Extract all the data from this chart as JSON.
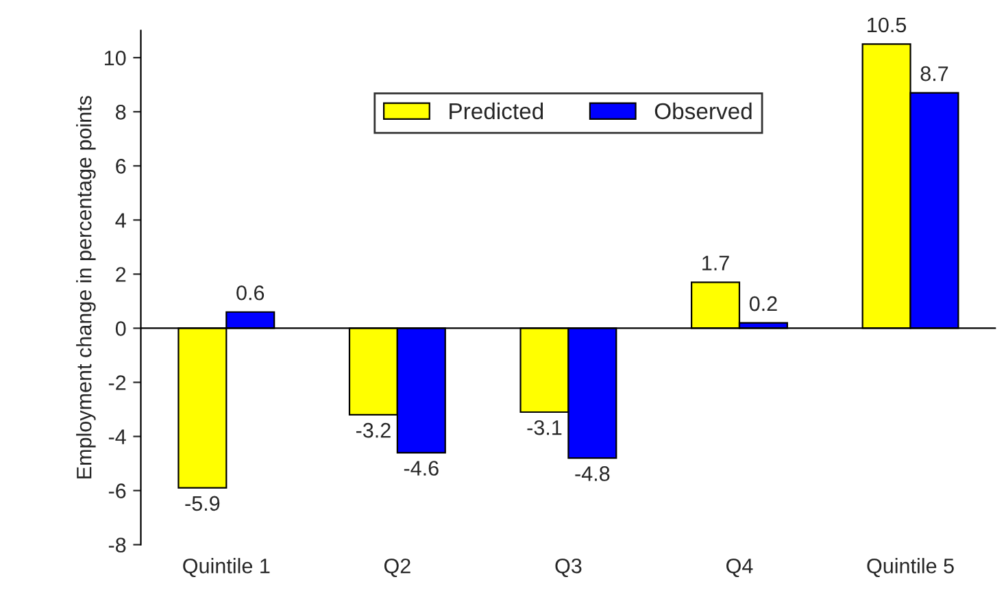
{
  "chart_data": {
    "type": "bar",
    "ylabel": "Employment change in percentage points",
    "categories": [
      "Quintile 1",
      "Q2",
      "Q3",
      "Q4",
      "Quintile 5"
    ],
    "series": [
      {
        "name": "Predicted",
        "color": "#ffff00",
        "values": [
          -5.9,
          -3.2,
          -3.1,
          1.7,
          10.5
        ]
      },
      {
        "name": "Observed",
        "color": "#0000ff",
        "values": [
          0.6,
          -4.6,
          -4.8,
          0.2,
          8.7
        ]
      }
    ],
    "ylim": [
      -8,
      11
    ],
    "yticks": [
      -8,
      -6,
      -4,
      -2,
      0,
      2,
      4,
      6,
      8,
      10
    ],
    "data_labels": true,
    "legend": "top"
  }
}
